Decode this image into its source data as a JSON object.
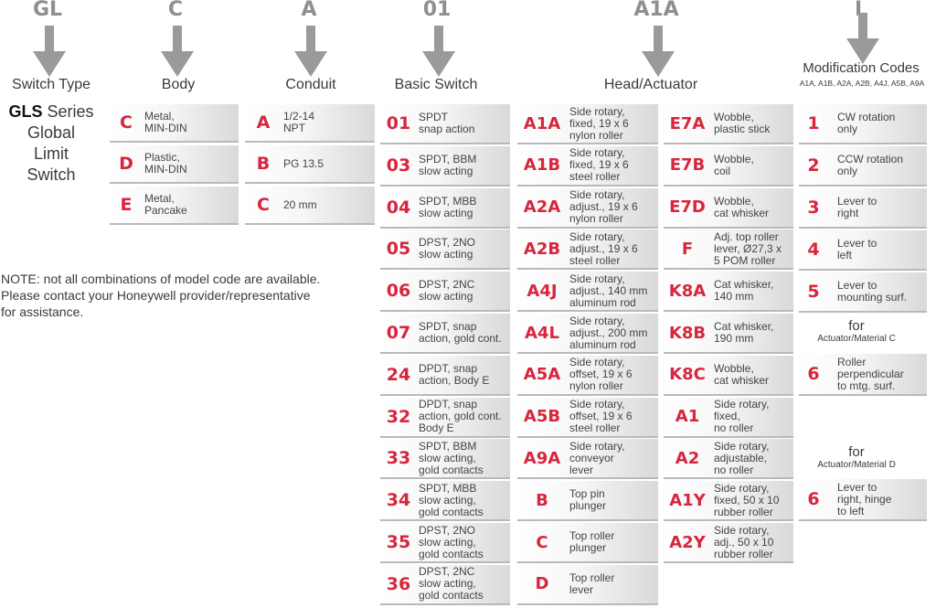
{
  "header_codes": [
    "GL",
    "C",
    "A",
    "01",
    "A1A",
    "L"
  ],
  "columns": {
    "switch_type": "Switch Type",
    "body": "Body",
    "conduit": "Conduit",
    "basic_switch": "Basic Switch",
    "head_actuator": "Head/Actuator",
    "modification": "Modification Codes",
    "modification_sub": "A1A, A1B, A2A, A2B, A4J, A5B, A9A"
  },
  "gls": {
    "bold": "GLS",
    "rest1": " Series",
    "line2": "Global",
    "line3": "Limit",
    "line4": "Switch"
  },
  "note": {
    "line1": "NOTE: not all combinations of model code are available.",
    "line2": "Please contact your Honeywell provider/representative",
    "line3": "for assistance."
  },
  "body_options": [
    {
      "code": "C",
      "desc": "Metal,\nMIN-DIN"
    },
    {
      "code": "D",
      "desc": "Plastic,\nMIN-DIN"
    },
    {
      "code": "E",
      "desc": "Metal,\nPancake"
    }
  ],
  "conduit_options": [
    {
      "code": "A",
      "desc": "1/2-14\nNPT"
    },
    {
      "code": "B",
      "desc": "PG 13.5"
    },
    {
      "code": "C",
      "desc": "20 mm"
    }
  ],
  "basic_switch_options": [
    {
      "code": "01",
      "desc": "SPDT\nsnap action"
    },
    {
      "code": "03",
      "desc": "SPDT, BBM\nslow acting"
    },
    {
      "code": "04",
      "desc": "SPDT, MBB\nslow acting"
    },
    {
      "code": "05",
      "desc": "DPST, 2NO\nslow acting"
    },
    {
      "code": "06",
      "desc": "DPST, 2NC\nslow acting"
    },
    {
      "code": "07",
      "desc": "SPDT, snap\naction, gold cont."
    },
    {
      "code": "24",
      "desc": "DPDT, snap\naction, Body E"
    },
    {
      "code": "32",
      "desc": "DPDT, snap\naction, gold cont.\nBody E"
    },
    {
      "code": "33",
      "desc": "SPDT, BBM\nslow acting,\ngold contacts"
    },
    {
      "code": "34",
      "desc": "SPDT, MBB\nslow acting,\ngold contacts"
    },
    {
      "code": "35",
      "desc": "DPST, 2NO\nslow acting,\ngold contacts"
    },
    {
      "code": "36",
      "desc": "DPST, 2NC\nslow acting,\ngold contacts"
    }
  ],
  "head_col1": [
    {
      "code": "A1A",
      "desc": "Side rotary,\nfixed, 19 x 6\nnylon roller"
    },
    {
      "code": "A1B",
      "desc": "Side rotary,\nfixed, 19 x 6\nsteel roller"
    },
    {
      "code": "A2A",
      "desc": "Side rotary,\nadjust., 19 x 6\nnylon roller"
    },
    {
      "code": "A2B",
      "desc": "Side rotary,\nadjust., 19 x 6\nsteel roller"
    },
    {
      "code": "A4J",
      "desc": "Side rotary,\nadjust., 140 mm\naluminum rod"
    },
    {
      "code": "A4L",
      "desc": "Side rotary,\nadjust., 200 mm\naluminum rod"
    },
    {
      "code": "A5A",
      "desc": "Side rotary,\noffset, 19 x 6\nnylon roller"
    },
    {
      "code": "A5B",
      "desc": "Side rotary,\noffset, 19 x 6\nsteel roller"
    },
    {
      "code": "A9A",
      "desc": "Side rotary,\nconveyor\nlever"
    },
    {
      "code": "B",
      "desc": "Top pin\nplunger"
    },
    {
      "code": "C",
      "desc": "Top roller\nplunger"
    },
    {
      "code": "D",
      "desc": "Top roller\nlever"
    }
  ],
  "head_col2": [
    {
      "code": "E7A",
      "desc": "Wobble,\nplastic stick"
    },
    {
      "code": "E7B",
      "desc": "Wobble,\ncoil"
    },
    {
      "code": "E7D",
      "desc": "Wobble,\ncat whisker"
    },
    {
      "code": "F",
      "desc": "Adj. top roller\nlever, Ø27,3 x\n5 POM roller"
    },
    {
      "code": "K8A",
      "desc": "Cat whisker,\n140 mm"
    },
    {
      "code": "K8B",
      "desc": "Cat whisker,\n190 mm"
    },
    {
      "code": "K8C",
      "desc": "Wobble,\ncat whisker"
    },
    {
      "code": "A1",
      "desc": "Side rotary,\nfixed,\nno roller"
    },
    {
      "code": "A2",
      "desc": "Side rotary,\nadjustable,\nno roller"
    },
    {
      "code": "A1Y",
      "desc": "Side rotary,\nfixed, 50 x 10\nrubber roller"
    },
    {
      "code": "A2Y",
      "desc": "Side rotary,\nadj., 50 x 10\nrubber roller"
    }
  ],
  "modification_options": [
    {
      "code": "1",
      "desc": "CW rotation\nonly"
    },
    {
      "code": "2",
      "desc": "CCW rotation\nonly"
    },
    {
      "code": "3",
      "desc": "Lever to\nright"
    },
    {
      "code": "4",
      "desc": "Lever to\nleft"
    },
    {
      "code": "5",
      "desc": "Lever to\nmounting surf."
    }
  ],
  "for_c": {
    "label": "for",
    "sub": "Actuator/Material C"
  },
  "modification_c": [
    {
      "code": "6",
      "desc": "Roller\nperpendicular\nto mtg. surf."
    }
  ],
  "for_d": {
    "label": "for",
    "sub": "Actuator/Material D"
  },
  "modification_d": [
    {
      "code": "6",
      "desc": "Lever to\nright, hinge\nto left"
    }
  ],
  "colors": {
    "code_red": "#d7263d",
    "header_gray": "#8f8f8f"
  }
}
